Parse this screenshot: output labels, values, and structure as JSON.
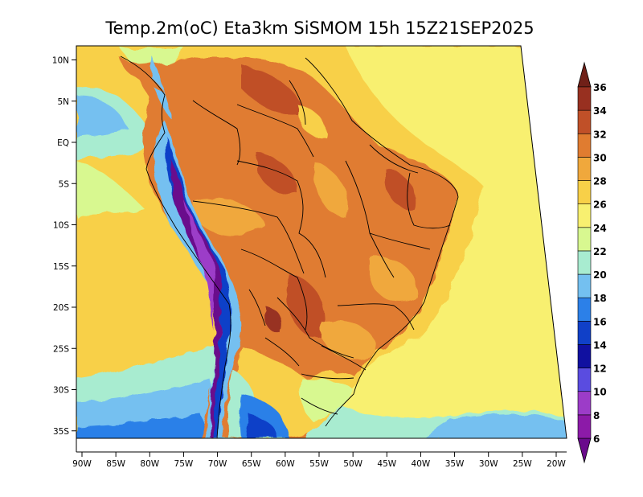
{
  "title": "Temp.2m(oC) Eta3km SiSMOM 15h 15Z21SEP2025",
  "map": {
    "variable": "2 m air temperature",
    "units": "oC",
    "lon_range": [
      -90,
      -20
    ],
    "lat_range": [
      -37,
      11
    ],
    "lat_ticks": [
      {
        "label": "10N",
        "lat": 10
      },
      {
        "label": "5N",
        "lat": 5
      },
      {
        "label": "EQ",
        "lat": 0
      },
      {
        "label": "5S",
        "lat": -5
      },
      {
        "label": "10S",
        "lat": -10
      },
      {
        "label": "15S",
        "lat": -15
      },
      {
        "label": "20S",
        "lat": -20
      },
      {
        "label": "25S",
        "lat": -25
      },
      {
        "label": "30S",
        "lat": -30
      },
      {
        "label": "35S",
        "lat": -35
      }
    ],
    "lon_ticks": [
      {
        "label": "90W",
        "lon": -90
      },
      {
        "label": "85W",
        "lon": -85
      },
      {
        "label": "80W",
        "lon": -80
      },
      {
        "label": "75W",
        "lon": -75
      },
      {
        "label": "70W",
        "lon": -70
      },
      {
        "label": "65W",
        "lon": -65
      },
      {
        "label": "60W",
        "lon": -60
      },
      {
        "label": "55W",
        "lon": -55
      },
      {
        "label": "50W",
        "lon": -50
      },
      {
        "label": "45W",
        "lon": -45
      },
      {
        "label": "40W",
        "lon": -40
      },
      {
        "label": "35W",
        "lon": -35
      },
      {
        "label": "30W",
        "lon": -30
      },
      {
        "label": "25W",
        "lon": -25
      },
      {
        "label": "20W",
        "lon": -20
      }
    ]
  },
  "colorbar": {
    "levels": [
      "6",
      "8",
      "10",
      "12",
      "14",
      "16",
      "18",
      "20",
      "22",
      "24",
      "26",
      "28",
      "30",
      "32",
      "34",
      "36"
    ],
    "colors": {
      "lt6": "#6a0a8c",
      "6_8": "#8c1aa8",
      "8_10": "#9c3cc8",
      "10_12": "#5a4ce0",
      "12_14": "#1010a0",
      "14_16": "#1040c8",
      "16_18": "#2c80e8",
      "18_20": "#74c0f0",
      "20_22": "#a8ecd0",
      "22_24": "#d8f890",
      "24_26": "#f8f070",
      "26_28": "#f8d048",
      "28_30": "#f0a83c",
      "30_32": "#e07c30",
      "32_34": "#c05028",
      "34_36": "#983020",
      "gt36": "#702018"
    }
  }
}
